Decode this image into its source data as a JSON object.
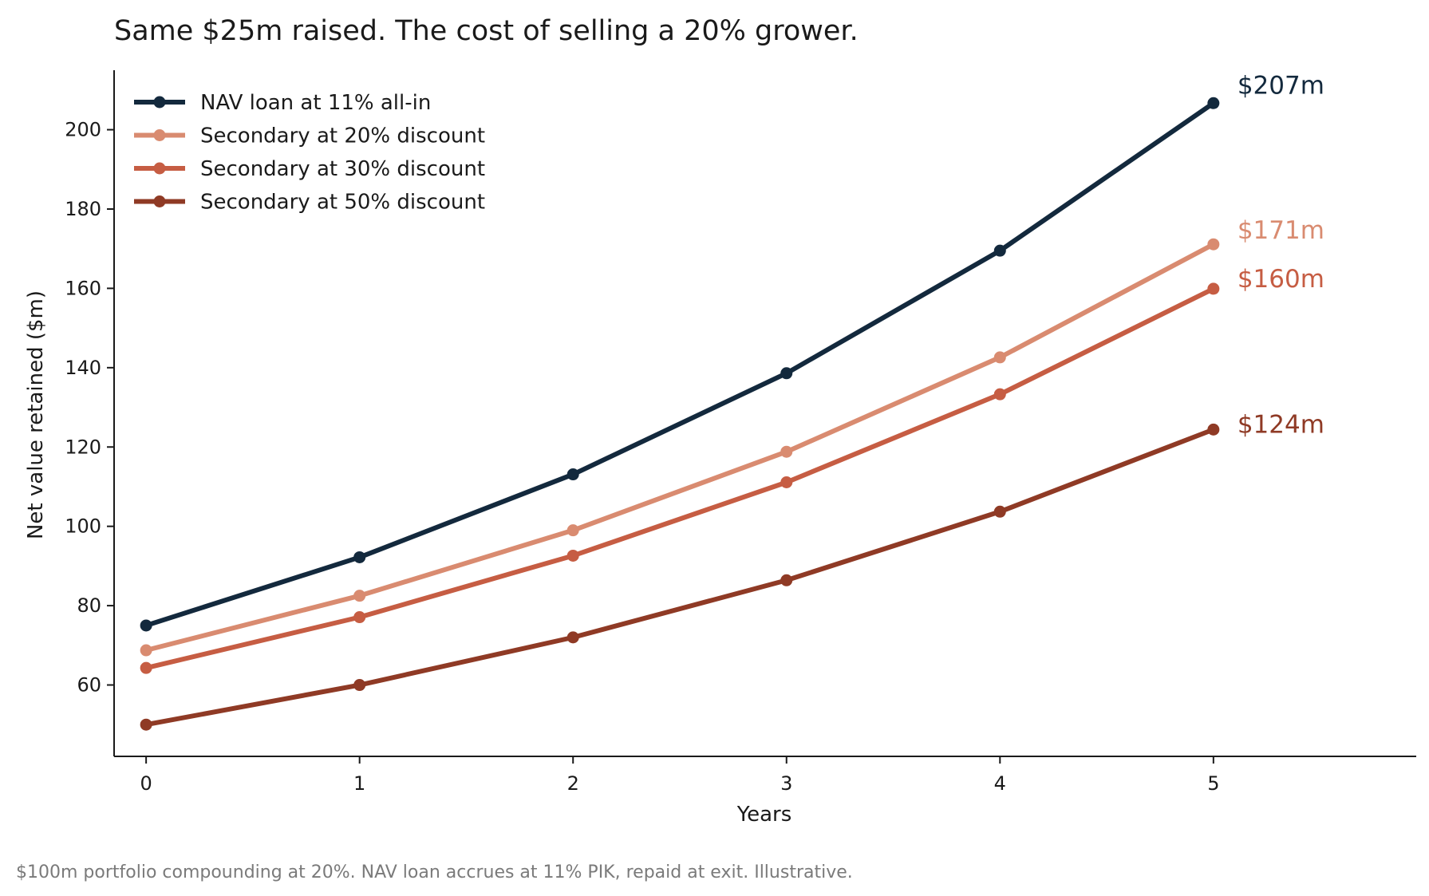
{
  "title": "Same $25m raised. The cost of selling a 20% grower.",
  "footnote": "$100m portfolio compounding at 20%. NAV loan accrues at 11% PIK, repaid at exit. Illustrative.",
  "chart_data": {
    "type": "line",
    "title": "Same $25m raised. The cost of selling a 20% grower.",
    "xlabel": "Years",
    "ylabel": "Net value retained ($m)",
    "x": [
      0,
      1,
      2,
      3,
      4,
      5
    ],
    "xticks": [
      "0",
      "1",
      "2",
      "3",
      "4",
      "5"
    ],
    "xlim": [
      -0.15,
      5.95
    ],
    "ylim": [
      42,
      215
    ],
    "yticks": [
      "60",
      "80",
      "100",
      "120",
      "140",
      "160",
      "180",
      "200"
    ],
    "grid": false,
    "legend_position": "top-left",
    "series": [
      {
        "name": "NAV loan at 11% all-in",
        "color": "#13293d",
        "values": [
          75.0,
          92.2,
          113.1,
          138.6,
          169.5,
          206.7
        ],
        "end_label": "$207m"
      },
      {
        "name": "Secondary at 20% discount",
        "color": "#d98b70",
        "values": [
          68.75,
          82.5,
          99.0,
          118.8,
          142.6,
          171.1
        ],
        "end_label": "$171m"
      },
      {
        "name": "Secondary at 30% discount",
        "color": "#c65d43",
        "values": [
          64.3,
          77.1,
          92.6,
          111.1,
          133.3,
          159.9
        ],
        "end_label": "$160m"
      },
      {
        "name": "Secondary at 50% discount",
        "color": "#8f3a25",
        "values": [
          50.0,
          60.0,
          72.0,
          86.4,
          103.7,
          124.4
        ],
        "end_label": "$124m"
      }
    ]
  }
}
